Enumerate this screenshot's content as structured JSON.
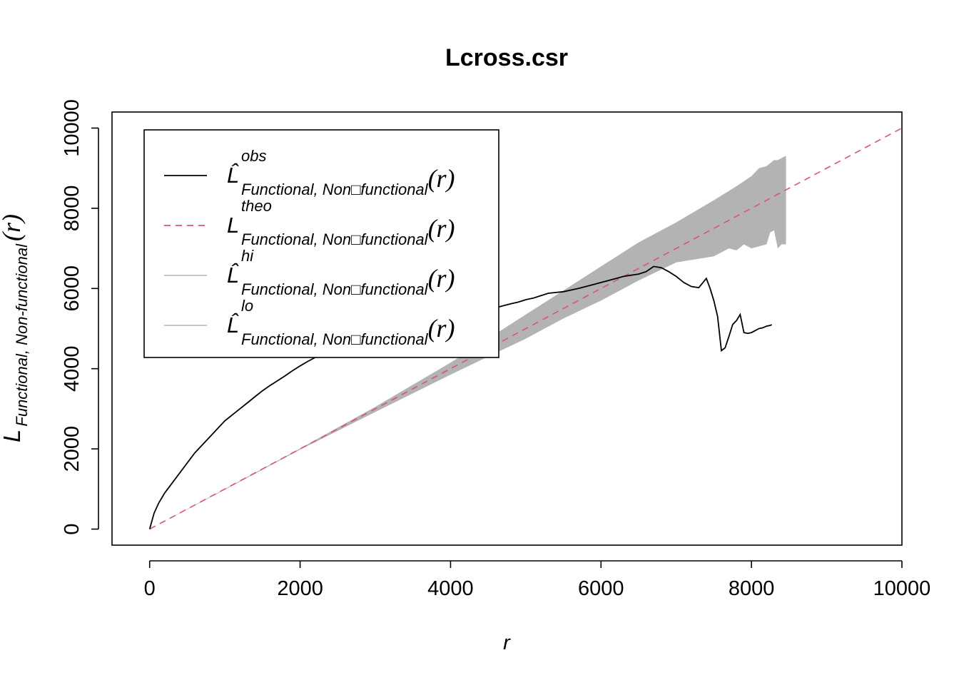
{
  "chart_data": {
    "type": "line",
    "title": "Lcross.csr",
    "xlabel": "r",
    "ylabel": {
      "main": "L",
      "subscript": "Functional, Non-functional",
      "arg": "(r)"
    },
    "xlim": [
      -500,
      10000
    ],
    "ylim": [
      -400,
      10400
    ],
    "xticks": [
      0,
      2000,
      4000,
      6000,
      8000,
      10000
    ],
    "yticks": [
      0,
      2000,
      4000,
      6000,
      8000,
      10000
    ],
    "grid": false,
    "legend": {
      "placement": "top-left",
      "entries": [
        {
          "symbol": "L̂",
          "sup": "obs",
          "sub": "Functional, Non□functional",
          "arg": "(r)"
        },
        {
          "symbol": "L",
          "sup": "theo",
          "sub": "Functional, Non□functional",
          "arg": "(r)"
        },
        {
          "symbol": "L̂",
          "sup": "hi",
          "sub": "Functional, Non□functional",
          "arg": "(r)"
        },
        {
          "symbol": "L̂",
          "sup": "lo",
          "sub": "Functional, Non□functional",
          "arg": "(r)"
        }
      ]
    },
    "series": [
      {
        "name": "obs",
        "color": "#000000",
        "dash": "solid",
        "x": [
          0,
          60,
          120,
          200,
          300,
          400,
          500,
          600,
          700,
          800,
          900,
          1000,
          1100,
          1200,
          1300,
          1400,
          1500,
          1600,
          1700,
          1800,
          1900,
          2000,
          2100,
          2200,
          2300,
          2400,
          2500,
          2600,
          2700,
          2800,
          2900,
          3000,
          3100,
          3200,
          3300,
          3400,
          3500,
          3600,
          3700,
          3800,
          3900,
          4000,
          4100,
          4200,
          4300,
          4400,
          4500,
          4600,
          4700,
          4800,
          4900,
          5000,
          5100,
          5200,
          5300,
          5400,
          5500,
          5600,
          5700,
          5800,
          5900,
          6000,
          6100,
          6200,
          6300,
          6400,
          6500,
          6600,
          6700,
          6800,
          6900,
          7000,
          7100,
          7200,
          7300,
          7400,
          7450,
          7500,
          7550,
          7600,
          7650,
          7700,
          7750,
          7800,
          7850,
          7900,
          7950,
          8000,
          8050,
          8100,
          8150,
          8200,
          8250,
          8270
        ],
        "y": [
          0,
          400,
          650,
          900,
          1150,
          1400,
          1650,
          1900,
          2100,
          2300,
          2500,
          2700,
          2850,
          3000,
          3150,
          3300,
          3450,
          3580,
          3700,
          3820,
          3950,
          4070,
          4180,
          4280,
          4370,
          4440,
          4500,
          4540,
          4580,
          4610,
          4650,
          4700,
          4760,
          4820,
          4880,
          4940,
          4990,
          5040,
          5100,
          5150,
          5200,
          5250,
          5300,
          5360,
          5400,
          5430,
          5480,
          5520,
          5570,
          5620,
          5660,
          5720,
          5760,
          5820,
          5880,
          5900,
          5920,
          5960,
          6000,
          6050,
          6100,
          6150,
          6200,
          6250,
          6300,
          6330,
          6360,
          6420,
          6550,
          6520,
          6420,
          6300,
          6150,
          6050,
          6020,
          6250,
          6000,
          5700,
          5300,
          4450,
          4520,
          4800,
          5100,
          5200,
          5350,
          4900,
          4880,
          4900,
          4950,
          5000,
          5020,
          5060,
          5080,
          5100
        ]
      },
      {
        "name": "theo",
        "color": "#DF536B",
        "dash": "dashed",
        "x": [
          0,
          10000
        ],
        "y": [
          0,
          10000
        ]
      },
      {
        "name": "hi",
        "color": "#BEBEBE",
        "dash": "solid",
        "x": [
          0,
          1000,
          2000,
          3000,
          4000,
          4500,
          5000,
          5500,
          6000,
          6500,
          7000,
          7500,
          7800,
          8000,
          8100,
          8200,
          8300,
          8350,
          8400,
          8450,
          8460
        ],
        "y": [
          0,
          1000,
          2010,
          3050,
          4150,
          4750,
          5350,
          5950,
          6550,
          7150,
          7650,
          8200,
          8550,
          8800,
          9000,
          9050,
          9200,
          9200,
          9250,
          9300,
          9300
        ]
      },
      {
        "name": "lo",
        "color": "#BEBEBE",
        "dash": "solid",
        "x": [
          0,
          1000,
          2000,
          3000,
          4000,
          4500,
          5000,
          5500,
          6000,
          6500,
          7000,
          7500,
          7700,
          7800,
          7900,
          8000,
          8100,
          8200,
          8250,
          8300,
          8350,
          8400,
          8460
        ],
        "y": [
          0,
          980,
          1980,
          2920,
          3850,
          4300,
          4750,
          5250,
          5700,
          6200,
          6650,
          6800,
          7000,
          6950,
          7100,
          7000,
          7050,
          7100,
          7400,
          7450,
          7000,
          7100,
          7100
        ]
      }
    ]
  }
}
